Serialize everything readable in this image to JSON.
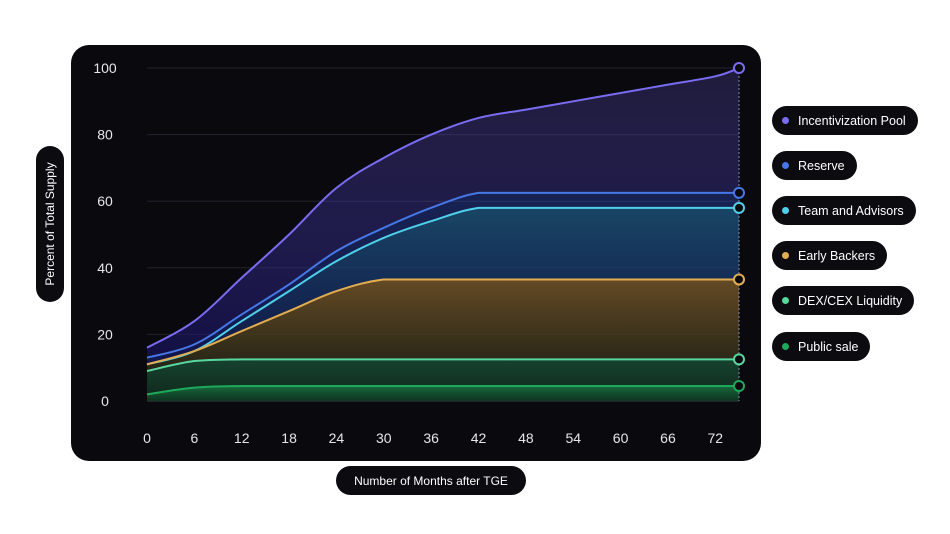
{
  "chart_data": {
    "type": "area",
    "title": "",
    "xlabel": "Number of Months after TGE",
    "ylabel": "Percent of Total Supply",
    "x_ticks": [
      "0",
      "6",
      "12",
      "18",
      "24",
      "30",
      "36",
      "42",
      "48",
      "54",
      "60",
      "66",
      "72"
    ],
    "y_ticks": [
      "0",
      "20",
      "40",
      "60",
      "80",
      "100"
    ],
    "xlim": [
      0,
      75
    ],
    "ylim": [
      0,
      100
    ],
    "grid": true,
    "legend_position": "right",
    "series": [
      {
        "name": "Incentivization Pool",
        "color": "#7a6cf2",
        "x": [
          0,
          6,
          12,
          18,
          24,
          30,
          36,
          42,
          48,
          54,
          60,
          66,
          72,
          75
        ],
        "values": [
          16,
          24,
          37,
          50,
          64,
          73,
          80,
          85,
          87.5,
          90,
          92.5,
          95,
          97.5,
          100
        ]
      },
      {
        "name": "Reserve",
        "color": "#4577e6",
        "x": [
          0,
          6,
          12,
          18,
          24,
          30,
          36,
          42,
          48,
          54,
          60,
          66,
          72,
          75
        ],
        "values": [
          13,
          17,
          26,
          35,
          45,
          52,
          58,
          62.5,
          62.5,
          62.5,
          62.5,
          62.5,
          62.5,
          62.5
        ]
      },
      {
        "name": "Team and Advisors",
        "color": "#4fd0ea",
        "x": [
          0,
          6,
          12,
          18,
          24,
          30,
          36,
          42,
          48,
          54,
          60,
          66,
          72,
          75
        ],
        "values": [
          11,
          15,
          24,
          33,
          42,
          49,
          54,
          58,
          58,
          58,
          58,
          58,
          58,
          58
        ]
      },
      {
        "name": "Early Backers",
        "color": "#e2ac50",
        "x": [
          0,
          6,
          12,
          18,
          24,
          30,
          36,
          42,
          48,
          54,
          60,
          66,
          72,
          75
        ],
        "values": [
          11,
          15,
          21,
          27,
          33,
          36.5,
          36.5,
          36.5,
          36.5,
          36.5,
          36.5,
          36.5,
          36.5,
          36.5
        ]
      },
      {
        "name": "DEX/CEX Liquidity",
        "color": "#58d79e",
        "x": [
          0,
          6,
          12,
          18,
          24,
          30,
          36,
          42,
          48,
          54,
          60,
          66,
          72,
          75
        ],
        "values": [
          9,
          12,
          12.5,
          12.5,
          12.5,
          12.5,
          12.5,
          12.5,
          12.5,
          12.5,
          12.5,
          12.5,
          12.5,
          12.5
        ]
      },
      {
        "name": "Public sale",
        "color": "#1ea85a",
        "x": [
          0,
          6,
          12,
          18,
          24,
          30,
          36,
          42,
          48,
          54,
          60,
          66,
          72,
          75
        ],
        "values": [
          2,
          4,
          4.5,
          4.5,
          4.5,
          4.5,
          4.5,
          4.5,
          4.5,
          4.5,
          4.5,
          4.5,
          4.5,
          4.5
        ]
      }
    ]
  }
}
